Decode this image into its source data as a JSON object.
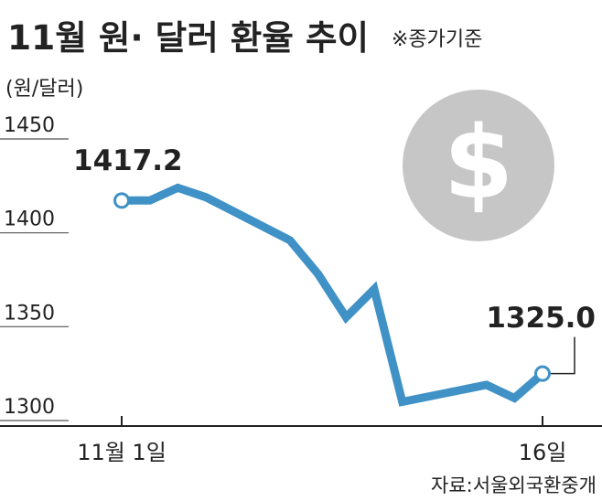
{
  "chart_data": {
    "type": "line",
    "title": "11월 원· 달러 환율 추이",
    "subtitle": "※종가기준",
    "ylabel": "(원/달러)",
    "ylim": [
      1300,
      1450
    ],
    "yticks": [
      "1450",
      "1400",
      "1350",
      "1300"
    ],
    "xtick_labels": [
      "11월 1일",
      "16일"
    ],
    "grid": true,
    "x": [
      1,
      2,
      3,
      4,
      7,
      8,
      9,
      10,
      11,
      14,
      15,
      16
    ],
    "series": [
      {
        "values": [
          1417.2,
          1417.2,
          1424.0,
          1419.0,
          1396.0,
          1378.0,
          1355.0,
          1370.0,
          1310.0,
          1319.0,
          1312.0,
          1325.0
        ]
      }
    ],
    "annotations": [
      {
        "label": "1417.2",
        "point": "first"
      },
      {
        "label": "1325.0",
        "point": "last"
      }
    ],
    "source": "자료:서울외국환중개"
  },
  "colors": {
    "line": "#3f91c6",
    "marker_fill": "#ffffff",
    "grid": "#555555",
    "axis": "#222222",
    "dollar_circle": "#c6c6c6",
    "dollar_sign": "#ffffff"
  },
  "icons": {
    "decoration": "dollar-icon"
  }
}
